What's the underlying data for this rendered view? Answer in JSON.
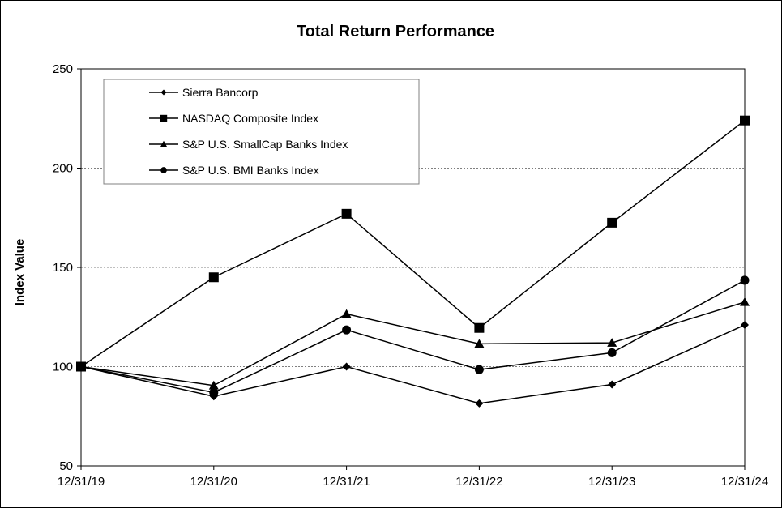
{
  "chart_data": {
    "type": "line",
    "title": "Total Return Performance",
    "xlabel": "",
    "ylabel": "Index Value",
    "categories": [
      "12/31/19",
      "12/31/20",
      "12/31/21",
      "12/31/22",
      "12/31/23",
      "12/31/24"
    ],
    "ylim": [
      50,
      250
    ],
    "yticks": [
      50,
      100,
      150,
      200,
      250
    ],
    "grid": "horizontal dashed",
    "legend_placement": "top-left",
    "series": [
      {
        "name": "Sierra Bancorp",
        "marker": "diamond",
        "values": [
          100,
          85,
          100,
          81.5,
          91,
          121
        ]
      },
      {
        "name": "NASDAQ Composite Index",
        "marker": "square",
        "values": [
          100,
          145,
          177,
          119.5,
          172.5,
          224
        ]
      },
      {
        "name": "S&P U.S. SmallCap Banks Index",
        "marker": "triangle",
        "values": [
          100,
          90.5,
          126.5,
          111.5,
          112,
          132.5
        ]
      },
      {
        "name": "S&P U.S. BMI Banks Index",
        "marker": "circle",
        "values": [
          100,
          87,
          118.5,
          98.5,
          107,
          143.5
        ]
      }
    ],
    "line_color": "#000000",
    "grid_color": "#808080"
  }
}
